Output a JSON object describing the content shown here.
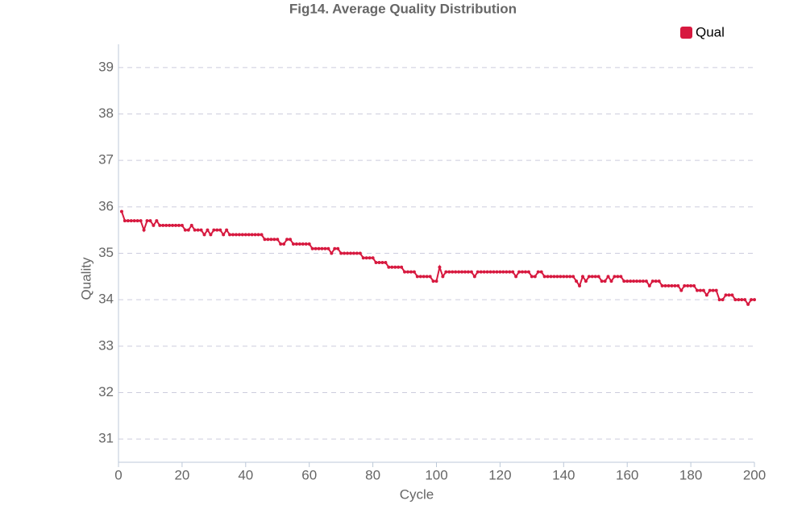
{
  "chart_data": {
    "type": "line",
    "title": "Fig14. Average Quality Distribution",
    "x_label": "Cycle",
    "y_label": "Quality",
    "x": [
      1,
      2,
      3,
      4,
      5,
      6,
      7,
      8,
      9,
      10,
      11,
      12,
      13,
      14,
      15,
      16,
      17,
      18,
      19,
      20,
      21,
      22,
      23,
      24,
      25,
      26,
      27,
      28,
      29,
      30,
      31,
      32,
      33,
      34,
      35,
      36,
      37,
      38,
      39,
      40,
      41,
      42,
      43,
      44,
      45,
      46,
      47,
      48,
      49,
      50,
      51,
      52,
      53,
      54,
      55,
      56,
      57,
      58,
      59,
      60,
      61,
      62,
      63,
      64,
      65,
      66,
      67,
      68,
      69,
      70,
      71,
      72,
      73,
      74,
      75,
      76,
      77,
      78,
      79,
      80,
      81,
      82,
      83,
      84,
      85,
      86,
      87,
      88,
      89,
      90,
      91,
      92,
      93,
      94,
      95,
      96,
      97,
      98,
      99,
      100,
      101,
      102,
      103,
      104,
      105,
      106,
      107,
      108,
      109,
      110,
      111,
      112,
      113,
      114,
      115,
      116,
      117,
      118,
      119,
      120,
      121,
      122,
      123,
      124,
      125,
      126,
      127,
      128,
      129,
      130,
      131,
      132,
      133,
      134,
      135,
      136,
      137,
      138,
      139,
      140,
      141,
      142,
      143,
      144,
      145,
      146,
      147,
      148,
      149,
      150,
      151,
      152,
      153,
      154,
      155,
      156,
      157,
      158,
      159,
      160,
      161,
      162,
      163,
      164,
      165,
      166,
      167,
      168,
      169,
      170,
      171,
      172,
      173,
      174,
      175,
      176,
      177,
      178,
      179,
      180,
      181,
      182,
      183,
      184,
      185,
      186,
      187,
      188,
      189,
      190,
      191,
      192,
      193,
      194,
      195,
      196,
      197,
      198,
      199,
      200
    ],
    "series": [
      {
        "name": "Qual",
        "color": "#d7193f",
        "values": [
          35.9,
          35.7,
          35.7,
          35.7,
          35.7,
          35.7,
          35.7,
          35.5,
          35.7,
          35.7,
          35.6,
          35.7,
          35.6,
          35.6,
          35.6,
          35.6,
          35.6,
          35.6,
          35.6,
          35.6,
          35.5,
          35.5,
          35.6,
          35.5,
          35.5,
          35.5,
          35.4,
          35.5,
          35.4,
          35.5,
          35.5,
          35.5,
          35.4,
          35.5,
          35.4,
          35.4,
          35.4,
          35.4,
          35.4,
          35.4,
          35.4,
          35.4,
          35.4,
          35.4,
          35.4,
          35.3,
          35.3,
          35.3,
          35.3,
          35.3,
          35.2,
          35.2,
          35.3,
          35.3,
          35.2,
          35.2,
          35.2,
          35.2,
          35.2,
          35.2,
          35.1,
          35.1,
          35.1,
          35.1,
          35.1,
          35.1,
          35.0,
          35.1,
          35.1,
          35.0,
          35.0,
          35.0,
          35.0,
          35.0,
          35.0,
          35.0,
          34.9,
          34.9,
          34.9,
          34.9,
          34.8,
          34.8,
          34.8,
          34.8,
          34.7,
          34.7,
          34.7,
          34.7,
          34.7,
          34.6,
          34.6,
          34.6,
          34.6,
          34.5,
          34.5,
          34.5,
          34.5,
          34.5,
          34.4,
          34.4,
          34.7,
          34.5,
          34.6,
          34.6,
          34.6,
          34.6,
          34.6,
          34.6,
          34.6,
          34.6,
          34.6,
          34.5,
          34.6,
          34.6,
          34.6,
          34.6,
          34.6,
          34.6,
          34.6,
          34.6,
          34.6,
          34.6,
          34.6,
          34.6,
          34.5,
          34.6,
          34.6,
          34.6,
          34.6,
          34.5,
          34.5,
          34.6,
          34.6,
          34.5,
          34.5,
          34.5,
          34.5,
          34.5,
          34.5,
          34.5,
          34.5,
          34.5,
          34.5,
          34.4,
          34.3,
          34.5,
          34.4,
          34.5,
          34.5,
          34.5,
          34.5,
          34.4,
          34.4,
          34.5,
          34.4,
          34.5,
          34.5,
          34.5,
          34.4,
          34.4,
          34.4,
          34.4,
          34.4,
          34.4,
          34.4,
          34.4,
          34.3,
          34.4,
          34.4,
          34.4,
          34.3,
          34.3,
          34.3,
          34.3,
          34.3,
          34.3,
          34.2,
          34.3,
          34.3,
          34.3,
          34.3,
          34.2,
          34.2,
          34.2,
          34.1,
          34.2,
          34.2,
          34.2,
          34.0,
          34.0,
          34.1,
          34.1,
          34.1,
          34.0,
          34.0,
          34.0,
          34.0,
          33.9,
          34.0,
          34.0
        ]
      }
    ],
    "xlim": [
      0,
      200
    ],
    "xticks": [
      0,
      20,
      40,
      60,
      80,
      100,
      120,
      140,
      160,
      180,
      200
    ],
    "ylim": [
      30.5,
      39.5
    ],
    "yticks": [
      31,
      32,
      33,
      34,
      35,
      36,
      37,
      38,
      39
    ],
    "grid": true,
    "legend": "top-right"
  }
}
